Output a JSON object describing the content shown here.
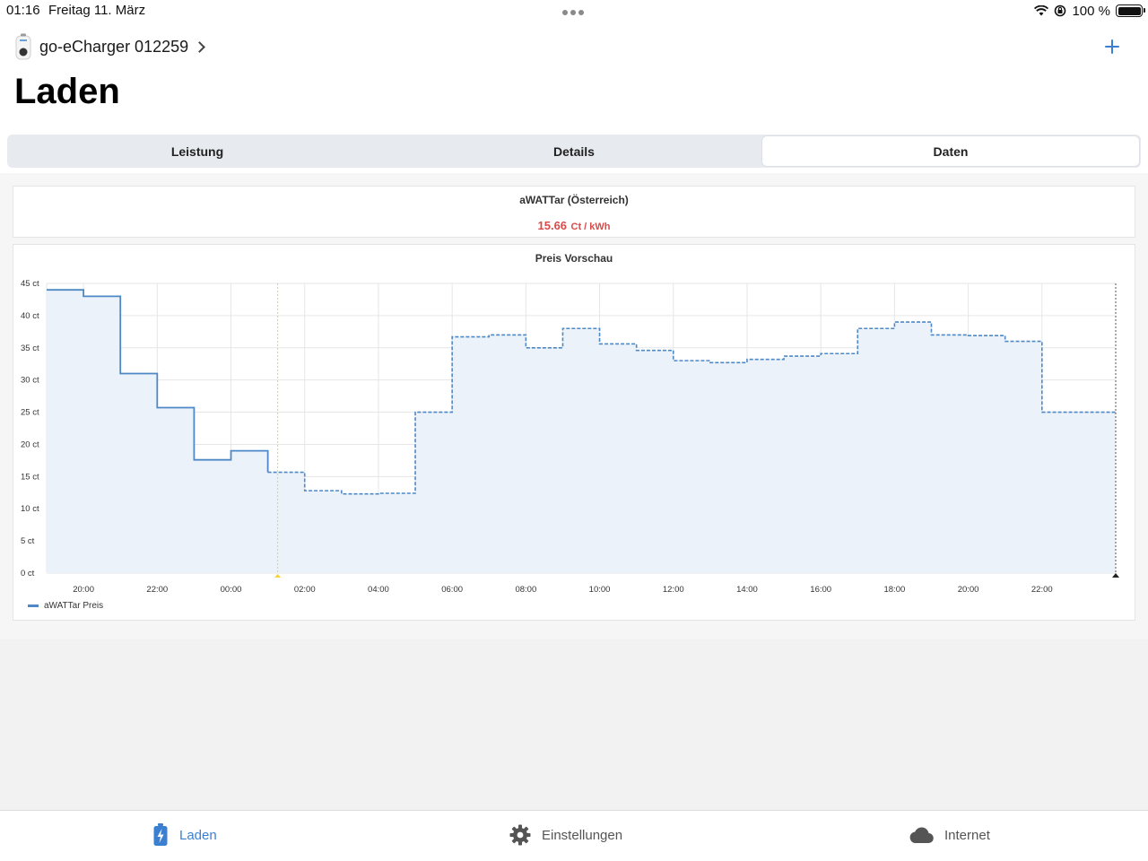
{
  "status": {
    "time": "01:16",
    "date": "Freitag 11. März",
    "battery": "100 %"
  },
  "header": {
    "device_name": "go-eCharger 012259",
    "title": "Laden"
  },
  "tabs": [
    {
      "label": "Leistung",
      "active": false
    },
    {
      "label": "Details",
      "active": false
    },
    {
      "label": "Daten",
      "active": true
    }
  ],
  "price_card": {
    "title": "aWATTar (Österreich)",
    "value": "15.66",
    "unit": "Ct / kWh"
  },
  "chart_data": {
    "type": "line",
    "title": "Preis Vorschau",
    "xlabel": "",
    "ylabel": "",
    "ylim": [
      0,
      45
    ],
    "y_ticks": [
      "0 ct",
      "5 ct",
      "10 ct",
      "15 ct",
      "20 ct",
      "25 ct",
      "30 ct",
      "35 ct",
      "40 ct",
      "45 ct"
    ],
    "x_ticks": [
      "20:00",
      "22:00",
      "00:00",
      "02:00",
      "04:00",
      "06:00",
      "08:00",
      "10:00",
      "12:00",
      "14:00",
      "16:00",
      "18:00",
      "20:00",
      "22:00"
    ],
    "step": "hourly",
    "start_time": "19:00",
    "now_time": "01:16",
    "grid": true,
    "legend": "bottom-left",
    "series": [
      {
        "name": "aWATTar Preis",
        "color": "#4e88c6",
        "past_values": [
          44.0,
          43.0,
          31.0,
          25.7,
          17.6,
          19.0
        ],
        "values": [
          44.0,
          43.0,
          31.0,
          25.7,
          17.6,
          19.0,
          15.66,
          12.8,
          12.3,
          12.4,
          25.0,
          36.7,
          37.0,
          35.0,
          38.0,
          35.6,
          34.6,
          33.0,
          32.7,
          33.2,
          33.7,
          34.1,
          38.0,
          39.0,
          37.0,
          36.9,
          36.0,
          25.0,
          25.0
        ]
      }
    ]
  },
  "tabbar": [
    {
      "label": "Laden",
      "icon": "battery-bolt-icon",
      "active": true
    },
    {
      "label": "Einstellungen",
      "icon": "gear-icon",
      "active": false
    },
    {
      "label": "Internet",
      "icon": "cloud-icon",
      "active": false
    }
  ]
}
